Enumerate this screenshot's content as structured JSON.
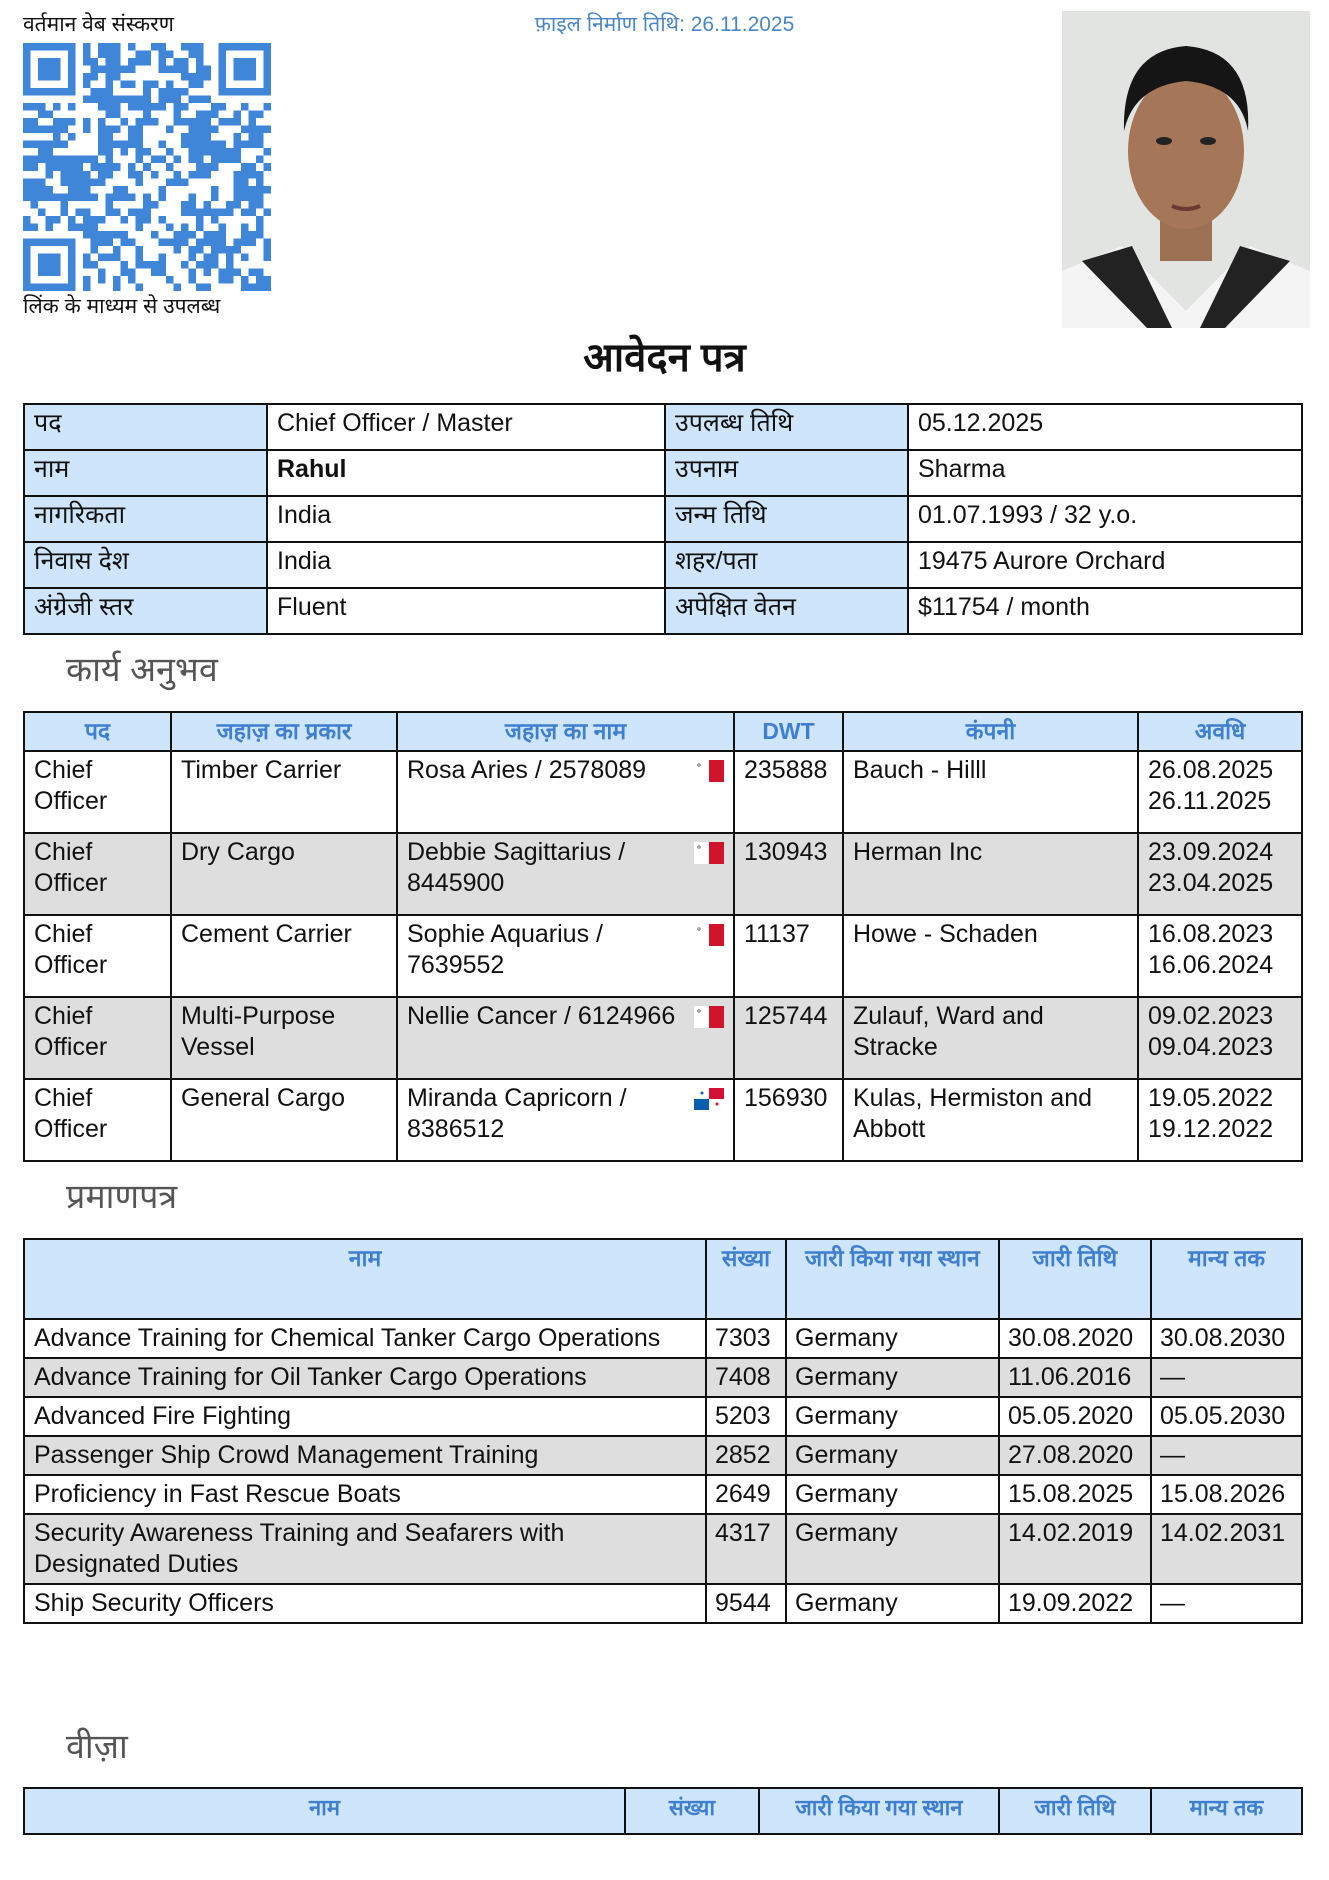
{
  "header": {
    "web_version_label": "वर्तमान वेब संस्करण",
    "link_label": "लिंक के माध्यम से उपलब्ध",
    "file_date": "फ़ाइल निर्माण तिथि: 26.11.2025",
    "title": "आवेदन पत्र"
  },
  "colors": {
    "accent": "#3f7fcf",
    "header_bg": "#cfe5fb",
    "qr": "#3f86d8",
    "row_alt": "#dedede"
  },
  "info": [
    {
      "l1": "पद",
      "v1": "Chief Officer / Master",
      "l2": "उपलब्ध तिथि",
      "v2": "05.12.2025"
    },
    {
      "l1": "नाम",
      "v1": "Rahul",
      "l2": "उपनाम",
      "v2": "Sharma"
    },
    {
      "l1": "नागरिकता",
      "v1": "India",
      "l2": "जन्म तिथि",
      "v2": "01.07.1993 / 32 y.o."
    },
    {
      "l1": "निवास देश",
      "v1": "India",
      "l2": "शहर/पता",
      "v2": "19475 Aurore Orchard"
    },
    {
      "l1": "अंग्रेजी स्तर",
      "v1": "Fluent",
      "l2": "अपेक्षित वेतन",
      "v2": "$11754 / month"
    }
  ],
  "experience": {
    "heading": "कार्य अनुभव",
    "columns": [
      "पद",
      "जहाज़ का प्रकार",
      "जहाज़ का नाम",
      "DWT",
      "कंपनी",
      "अवधि"
    ],
    "rows": [
      {
        "rank": "Chief Officer",
        "type": "Timber Carrier",
        "vessel": "Rosa Aries / 2578089",
        "flag": "malta-flag",
        "dwt": "235888",
        "company": "Bauch - Hilll",
        "from": "26.08.2025",
        "to": "26.11.2025"
      },
      {
        "rank": "Chief Officer",
        "type": "Dry Cargo",
        "vessel": "Debbie Sagittarius / 8445900",
        "flag": "malta-flag",
        "dwt": "130943",
        "company": "Herman Inc",
        "from": "23.09.2024",
        "to": "23.04.2025"
      },
      {
        "rank": "Chief Officer",
        "type": "Cement Carrier",
        "vessel": "Sophie Aquarius / 7639552",
        "flag": "malta-flag",
        "dwt": "11137",
        "company": "Howe - Schaden",
        "from": "16.08.2023",
        "to": "16.06.2024"
      },
      {
        "rank": "Chief Officer",
        "type": "Multi-Purpose Vessel",
        "vessel": "Nellie Cancer / 6124966",
        "flag": "malta-flag",
        "dwt": "125744",
        "company": "Zulauf, Ward and Stracke",
        "from": "09.02.2023",
        "to": "09.04.2023"
      },
      {
        "rank": "Chief Officer",
        "type": "General Cargo",
        "vessel": "Miranda Capricorn / 8386512",
        "flag": "panama-flag",
        "dwt": "156930",
        "company": "Kulas, Hermiston and Abbott",
        "from": "19.05.2022",
        "to": "19.12.2022"
      }
    ]
  },
  "certificates": {
    "heading": "प्रमाणपत्र",
    "columns": [
      "नाम",
      "संख्या",
      "जारी किया गया स्थान",
      "जारी तिथि",
      "मान्य तक"
    ],
    "rows": [
      {
        "name": "Advance Training for Chemical Tanker Cargo Operations",
        "number": "7303",
        "place": "Germany",
        "issued": "30.08.2020",
        "valid": "30.08.2030"
      },
      {
        "name": "Advance Training for Oil Tanker Cargo Operations",
        "number": "7408",
        "place": "Germany",
        "issued": "11.06.2016",
        "valid": "—"
      },
      {
        "name": "Advanced Fire Fighting",
        "number": "5203",
        "place": "Germany",
        "issued": "05.05.2020",
        "valid": "05.05.2030"
      },
      {
        "name": "Passenger Ship Crowd Management Training",
        "number": "2852",
        "place": "Germany",
        "issued": "27.08.2020",
        "valid": "—"
      },
      {
        "name": "Proficiency in Fast Rescue Boats",
        "number": "2649",
        "place": "Germany",
        "issued": "15.08.2025",
        "valid": "15.08.2026"
      },
      {
        "name": "Security Awareness Training and Seafarers with Designated Duties",
        "number": "4317",
        "place": "Germany",
        "issued": "14.02.2019",
        "valid": "14.02.2031"
      },
      {
        "name": "Ship Security Officers",
        "number": "9544",
        "place": "Germany",
        "issued": "19.09.2022",
        "valid": "—"
      }
    ]
  },
  "visa": {
    "heading": "वीज़ा",
    "columns": [
      "नाम",
      "संख्या",
      "जारी किया गया स्थान",
      "जारी तिथि",
      "मान्य तक"
    ]
  }
}
